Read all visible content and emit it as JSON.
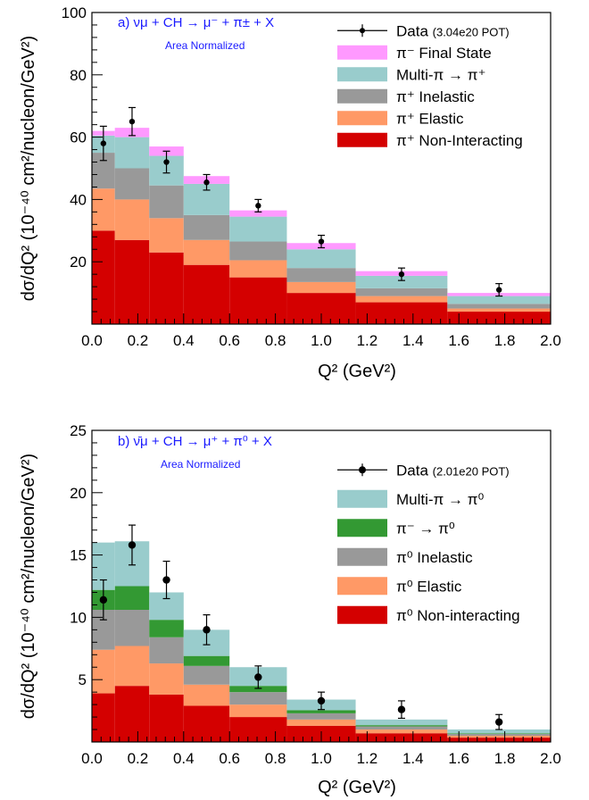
{
  "colors": {
    "non_interacting": "#d40000",
    "elastic": "#ff9966",
    "inelastic": "#999999",
    "pion_minus_to_pi0": "#339933",
    "multi_pi": "#99cccc",
    "final_state_minus": "#ff99ff",
    "title": "#1a1aff"
  },
  "chart_data": [
    {
      "type": "bar",
      "stacked": true,
      "panel_label": "a)",
      "title": "νμ + CH → μ⁻ + π± + X",
      "subtitle": "Area Normalized",
      "xlabel": "Q² (GeV²)",
      "ylabel": "dσ/dQ² (10⁻⁴⁰ cm²/nucleon/GeV²)",
      "xlim": [
        0,
        2
      ],
      "ylim": [
        0,
        100
      ],
      "xticks": [
        "0.0",
        "0.2",
        "0.4",
        "0.6",
        "0.8",
        "1.0",
        "1.2",
        "1.4",
        "1.6",
        "1.8",
        "2.0"
      ],
      "yticks": [
        "20",
        "40",
        "60",
        "80",
        "100"
      ],
      "legend_position": "top-right",
      "bin_edges": [
        0,
        0.1,
        0.25,
        0.4,
        0.6,
        0.85,
        1.15,
        1.55,
        2.0
      ],
      "series": [
        {
          "name": "π⁺ Non-Interacting",
          "color_key": "non_interacting",
          "values": [
            30,
            27,
            23,
            19,
            15,
            10,
            7,
            4
          ]
        },
        {
          "name": "π⁺ Elastic",
          "color_key": "elastic",
          "values": [
            13.5,
            13,
            11,
            8,
            5.5,
            3.5,
            2,
            1
          ]
        },
        {
          "name": "π⁺ Inelastic",
          "color_key": "inelastic",
          "values": [
            11.5,
            10,
            10.5,
            8,
            6,
            4.5,
            2.5,
            1.5
          ]
        },
        {
          "name": "Multi-π → π⁺",
          "color_key": "multi_pi",
          "values": [
            5.5,
            10,
            9.5,
            10,
            8,
            6,
            4,
            2.5
          ]
        },
        {
          "name": "π⁻ Final State",
          "color_key": "final_state_minus",
          "values": [
            1.5,
            3,
            3,
            2.5,
            2,
            2,
            1.5,
            1
          ]
        }
      ],
      "data_series": {
        "name": "Data",
        "name_note": "(3.04e20 POT)",
        "x": [
          0.05,
          0.175,
          0.325,
          0.5,
          0.725,
          1.0,
          1.35,
          1.775
        ],
        "y": [
          58,
          65,
          52,
          45.5,
          38,
          26.5,
          16,
          11
        ],
        "err": [
          5.5,
          4.5,
          3.5,
          2.5,
          2,
          2,
          2,
          2
        ]
      }
    },
    {
      "type": "bar",
      "stacked": true,
      "panel_label": "b)",
      "title": "ν̄μ + CH → μ⁺ + π⁰ + X",
      "subtitle": "Area Normalized",
      "xlabel": "Q² (GeV²)",
      "ylabel": "dσ/dQ² (10⁻⁴⁰ cm²/nucleon/GeV²)",
      "xlim": [
        0,
        2
      ],
      "ylim": [
        0,
        25
      ],
      "xticks": [
        "0.0",
        "0.2",
        "0.4",
        "0.6",
        "0.8",
        "1.0",
        "1.2",
        "1.4",
        "1.6",
        "1.8",
        "2.0"
      ],
      "yticks": [
        "5",
        "10",
        "15",
        "20",
        "25"
      ],
      "legend_position": "top-right",
      "bin_edges": [
        0,
        0.1,
        0.25,
        0.4,
        0.6,
        0.85,
        1.15,
        1.55,
        2.0
      ],
      "series": [
        {
          "name": "π⁰ Non-interacting",
          "color_key": "non_interacting",
          "values": [
            3.9,
            4.5,
            3.8,
            2.9,
            2.0,
            1.3,
            0.7,
            0.35
          ]
        },
        {
          "name": "π⁰ Elastic",
          "color_key": "elastic",
          "values": [
            3.5,
            3.2,
            2.5,
            1.7,
            1.0,
            0.5,
            0.3,
            0.15
          ]
        },
        {
          "name": "π⁰ Inelastic",
          "color_key": "inelastic",
          "values": [
            3.2,
            2.9,
            2.1,
            1.5,
            1.0,
            0.5,
            0.25,
            0.15
          ]
        },
        {
          "name": "π⁻ → π⁰",
          "color_key": "pion_minus_to_pi0",
          "values": [
            1.6,
            1.9,
            1.4,
            0.8,
            0.5,
            0.25,
            0.1,
            0.05
          ]
        },
        {
          "name": "Multi-π → π⁰",
          "color_key": "multi_pi",
          "values": [
            3.8,
            3.6,
            2.2,
            2.1,
            1.5,
            0.85,
            0.45,
            0.3
          ]
        }
      ],
      "data_series": {
        "name": "Data",
        "name_note": "(2.01e20 POT)",
        "x": [
          0.05,
          0.175,
          0.325,
          0.5,
          0.725,
          1.0,
          1.35,
          1.775
        ],
        "y": [
          11.4,
          15.8,
          13.0,
          9.0,
          5.2,
          3.3,
          2.6,
          1.6
        ],
        "err": [
          1.6,
          1.6,
          1.5,
          1.2,
          0.9,
          0.7,
          0.7,
          0.6
        ]
      }
    }
  ]
}
